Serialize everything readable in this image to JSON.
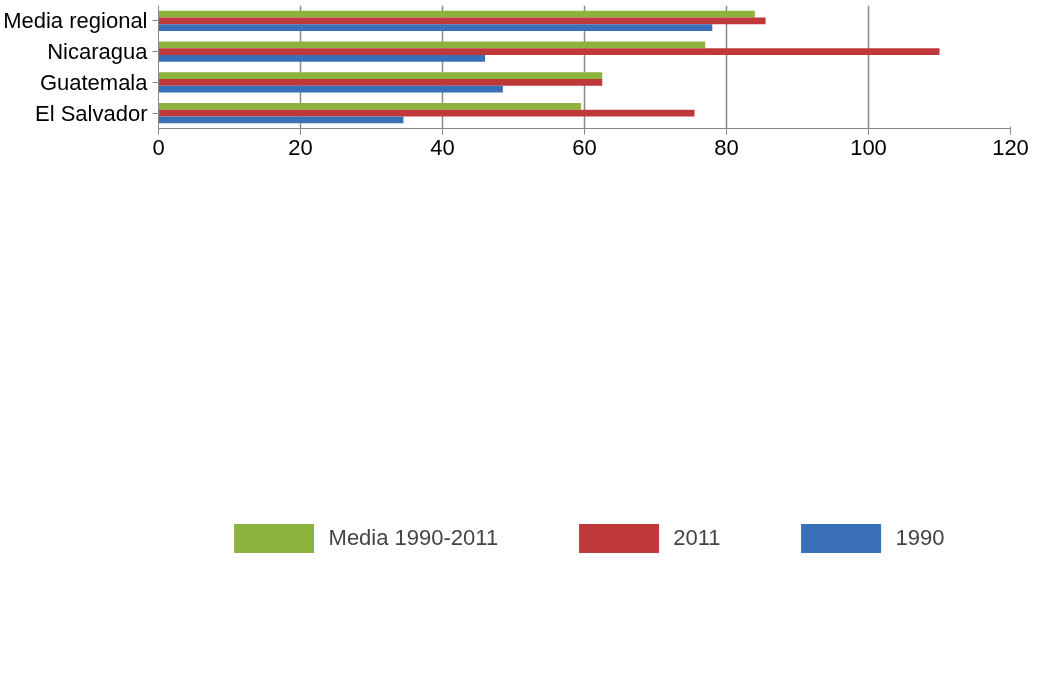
{
  "chart_data": {
    "type": "bar",
    "orientation": "horizontal",
    "categories": [
      "Media regional",
      "Nicaragua",
      "Guatemala",
      "El Salvador"
    ],
    "series": [
      {
        "name": "Media 1990-2011",
        "color": "#8db33f",
        "values": [
          84,
          77,
          62.5,
          59.5
        ]
      },
      {
        "name": "2011",
        "color": "#c0393a",
        "values": [
          85.5,
          110,
          62.5,
          75.5
        ]
      },
      {
        "name": "1990",
        "color": "#3a70b8",
        "values": [
          78,
          46,
          48.5,
          34.5
        ]
      }
    ],
    "xlim": [
      0,
      120
    ],
    "xticks": [
      0,
      20,
      40,
      60,
      80,
      100,
      120
    ],
    "grid": "x",
    "legend": "bottom"
  }
}
